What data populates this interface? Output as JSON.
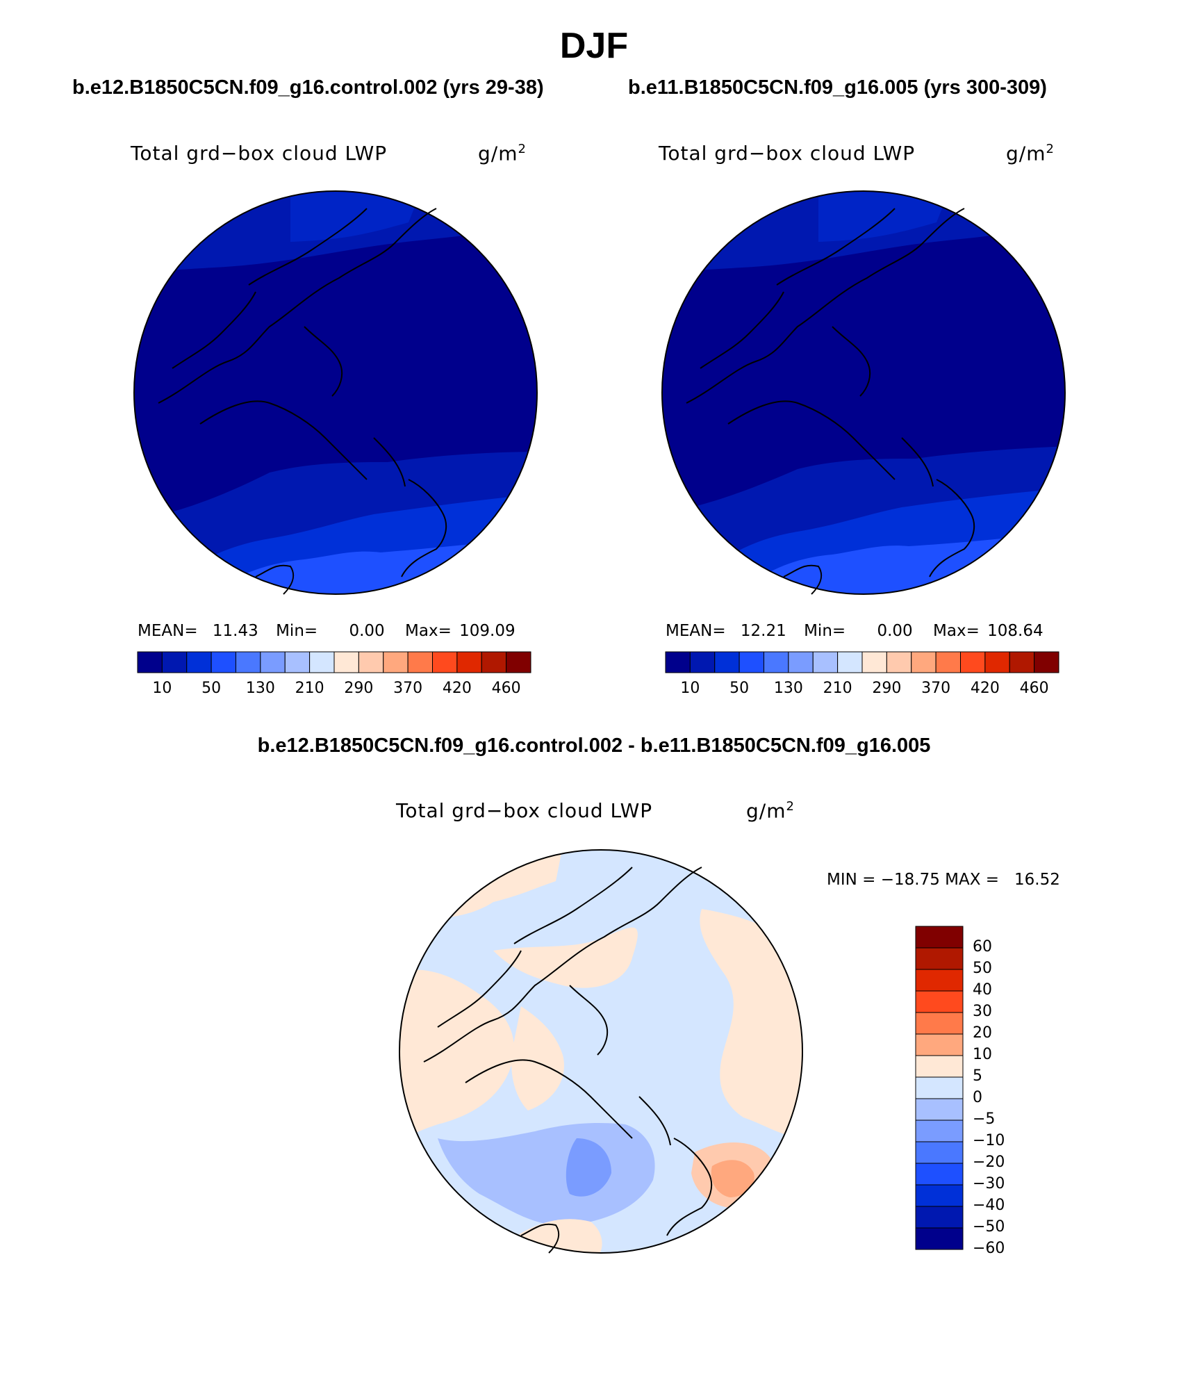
{
  "season": "DJF",
  "panels": {
    "left": {
      "case_title": "b.e12.B1850C5CN.f09_g16.control.002 (yrs 29-38)",
      "variable": "Total grd−box cloud LWP",
      "units_base": "g/m",
      "units_sup": "2",
      "stats": {
        "mean_label": "MEAN=",
        "mean": "11.43",
        "min_label": "Min=",
        "min": "0.00",
        "max_label": "Max=",
        "max": "109.09"
      }
    },
    "right": {
      "case_title": "b.e11.B1850C5CN.f09_g16.005 (yrs 300-309)",
      "variable": "Total grd−box cloud LWP",
      "units_base": "g/m",
      "units_sup": "2",
      "stats": {
        "mean_label": "MEAN=",
        "mean": "12.21",
        "min_label": "Min=",
        "min": "0.00",
        "max_label": "Max=",
        "max": "108.64"
      }
    },
    "diff": {
      "case_title": "b.e12.B1850C5CN.f09_g16.control.002 - b.e11.B1850C5CN.f09_g16.005",
      "variable": "Total grd−box cloud LWP",
      "units_base": "g/m",
      "units_sup": "2",
      "minmax": "MIN = −18.75 MAX =   16.52"
    }
  },
  "colorbar_main": {
    "colors": [
      "#00008c",
      "#0018b0",
      "#0030d8",
      "#1e50ff",
      "#4a78ff",
      "#7a9cff",
      "#a8c0ff",
      "#d4e6ff",
      "#ffe8d6",
      "#ffcaae",
      "#ffa87e",
      "#ff7a4a",
      "#ff4a1e",
      "#e02800",
      "#b01800",
      "#800000"
    ],
    "ticks": [
      "10",
      "50",
      "130",
      "210",
      "290",
      "370",
      "420",
      "460"
    ]
  },
  "colorbar_diff": {
    "colors": [
      "#800000",
      "#b01800",
      "#e02800",
      "#ff4a1e",
      "#ff7a4a",
      "#ffa87e",
      "#ffe8d6",
      "#d4e6ff",
      "#a8c0ff",
      "#7a9cff",
      "#4a78ff",
      "#1e50ff",
      "#0030d8",
      "#0018b0",
      "#00008c"
    ],
    "ticks": [
      "60",
      "50",
      "40",
      "30",
      "20",
      "10",
      "5",
      "0",
      "−5",
      "−10",
      "−20",
      "−30",
      "−40",
      "−50",
      "−60"
    ]
  }
}
